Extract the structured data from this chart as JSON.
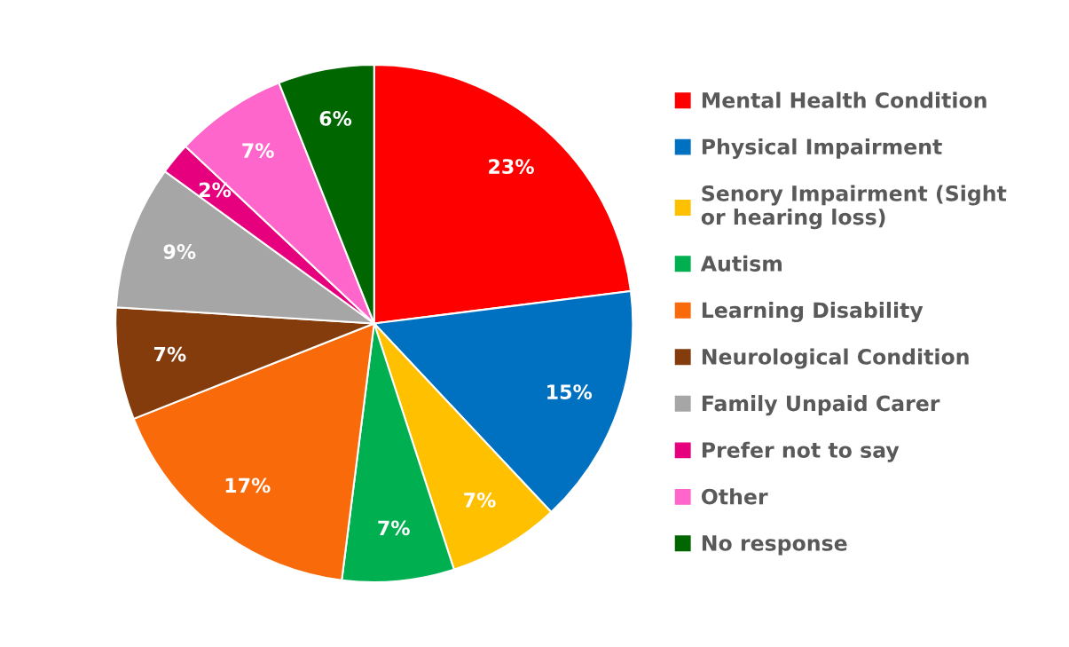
{
  "chart_data": {
    "type": "pie",
    "categories": [
      "Mental Health Condition",
      "Physical Impairment",
      "Senory Impairment (Sight\nor hearing loss)",
      "Autism",
      "Learning Disability",
      "Neurological Condition",
      "Family Unpaid Carer",
      "Prefer not to say",
      "Other",
      "No response"
    ],
    "values": [
      23,
      15,
      7,
      7,
      17,
      7,
      9,
      2,
      7,
      6
    ],
    "colors": [
      "#ff0000",
      "#0070c0",
      "#ffc000",
      "#00b050",
      "#f96a0a",
      "#843c0c",
      "#a6a6a6",
      "#e6007e",
      "#ff66cc",
      "#006600"
    ],
    "value_labels": [
      "23%",
      "15%",
      "7%",
      "7%",
      "17%",
      "7%",
      "9%",
      "2%",
      "7%",
      "6%"
    ],
    "legend": "right"
  }
}
